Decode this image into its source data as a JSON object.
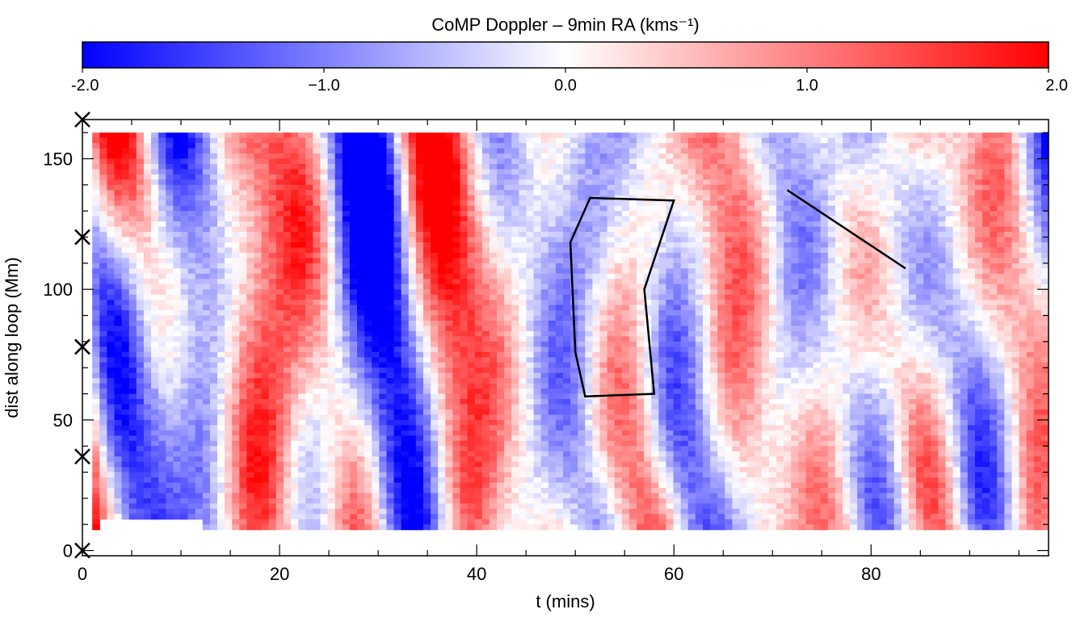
{
  "chart_data": {
    "type": "heatmap",
    "title": "CoMP Doppler – 9min RA (kms⁻¹)",
    "colorbar": {
      "min": -2.0,
      "max": 2.0,
      "ticks": [
        -2.0,
        -1.0,
        0.0,
        1.0,
        2.0
      ],
      "tick_labels": [
        "-2.0",
        "−1.0",
        "0.0",
        "1.0",
        "2.0"
      ],
      "colors": {
        "negative": "#0000ff",
        "zero": "#ffffff",
        "positive": "#ff0000"
      }
    },
    "xlabel": "t (mins)",
    "ylabel": "dist along loop (Mm)",
    "xlim": [
      0,
      98
    ],
    "ylim": [
      -2,
      165
    ],
    "xticks": [
      0,
      20,
      40,
      60,
      80
    ],
    "yticks": [
      0,
      50,
      100,
      150
    ],
    "cross_markers_y": [
      0,
      36,
      78,
      120,
      165
    ],
    "data_extent": {
      "t_start": 1,
      "t_end": 98,
      "dist_bottom": 8,
      "dist_top": 160
    },
    "annotations": [
      {
        "type": "polygon",
        "points": [
          [
            51.5,
            135
          ],
          [
            60,
            134
          ],
          [
            57,
            100
          ],
          [
            58,
            60
          ],
          [
            51,
            59
          ],
          [
            50,
            76
          ],
          [
            49.5,
            118
          ]
        ]
      },
      {
        "type": "line",
        "points": [
          [
            71.5,
            138
          ],
          [
            83.5,
            108
          ]
        ]
      }
    ]
  }
}
